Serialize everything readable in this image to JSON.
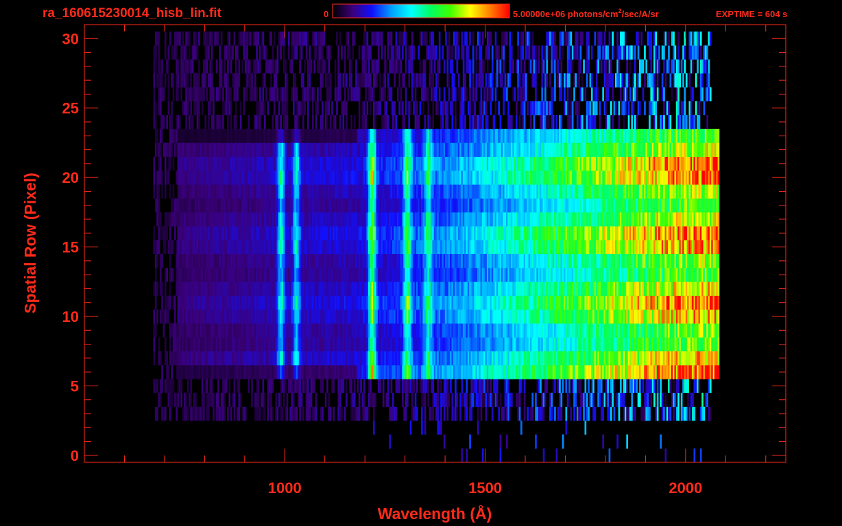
{
  "header": {
    "filename": "ra_160615230014_hisb_lin.fit",
    "exptime": "EXPTIME = 604 s"
  },
  "colorbar": {
    "min_label": "0",
    "max_label_prefix": "5.00000e+06 photons/cm",
    "max_label_sup": "2",
    "max_label_suffix": "/sec/A/sr",
    "vmin": 0,
    "vmax": 5000000,
    "colors": [
      "#000000",
      "#3a0078",
      "#1010ff",
      "#00a0ff",
      "#00ffff",
      "#00ff60",
      "#40ff00",
      "#ffff00",
      "#ff8000",
      "#ff0000"
    ]
  },
  "chart_data": {
    "type": "heatmap",
    "xlabel": "Wavelength (Å)",
    "ylabel": "Spatial Row (Pixel)",
    "xlim": [
      500,
      2250
    ],
    "ylim": [
      -0.5,
      31
    ],
    "xticks": [
      1000,
      1500,
      2000
    ],
    "yticks": [
      0,
      5,
      10,
      15,
      20,
      25,
      30
    ],
    "x_minor_step": 100,
    "y_minor_step": 1,
    "bright_rows": [
      6,
      23
    ],
    "faint_rows": [
      3,
      30
    ],
    "bright_x_range": [
      1180,
      2080
    ],
    "faint_x_range": [
      670,
      2060
    ],
    "emission_features": [
      {
        "wavelength": 1216,
        "relative_level": 0.55
      },
      {
        "wavelength": 1304,
        "relative_level": 0.42
      },
      {
        "wavelength": 1356,
        "relative_level": 0.3
      },
      {
        "wavelength": 989,
        "relative_level": 0.35
      },
      {
        "wavelength": 1027,
        "relative_level": 0.3
      }
    ],
    "continuum_levels": [
      {
        "wavelength": 700,
        "level": 0.12
      },
      {
        "wavelength": 1000,
        "level": 0.18
      },
      {
        "wavelength": 1200,
        "level": 0.22
      },
      {
        "wavelength": 1400,
        "level": 0.35
      },
      {
        "wavelength": 1600,
        "level": 0.55
      },
      {
        "wavelength": 1800,
        "level": 0.75
      },
      {
        "wavelength": 1950,
        "level": 0.9
      },
      {
        "wavelength": 2050,
        "level": 0.95
      }
    ]
  }
}
